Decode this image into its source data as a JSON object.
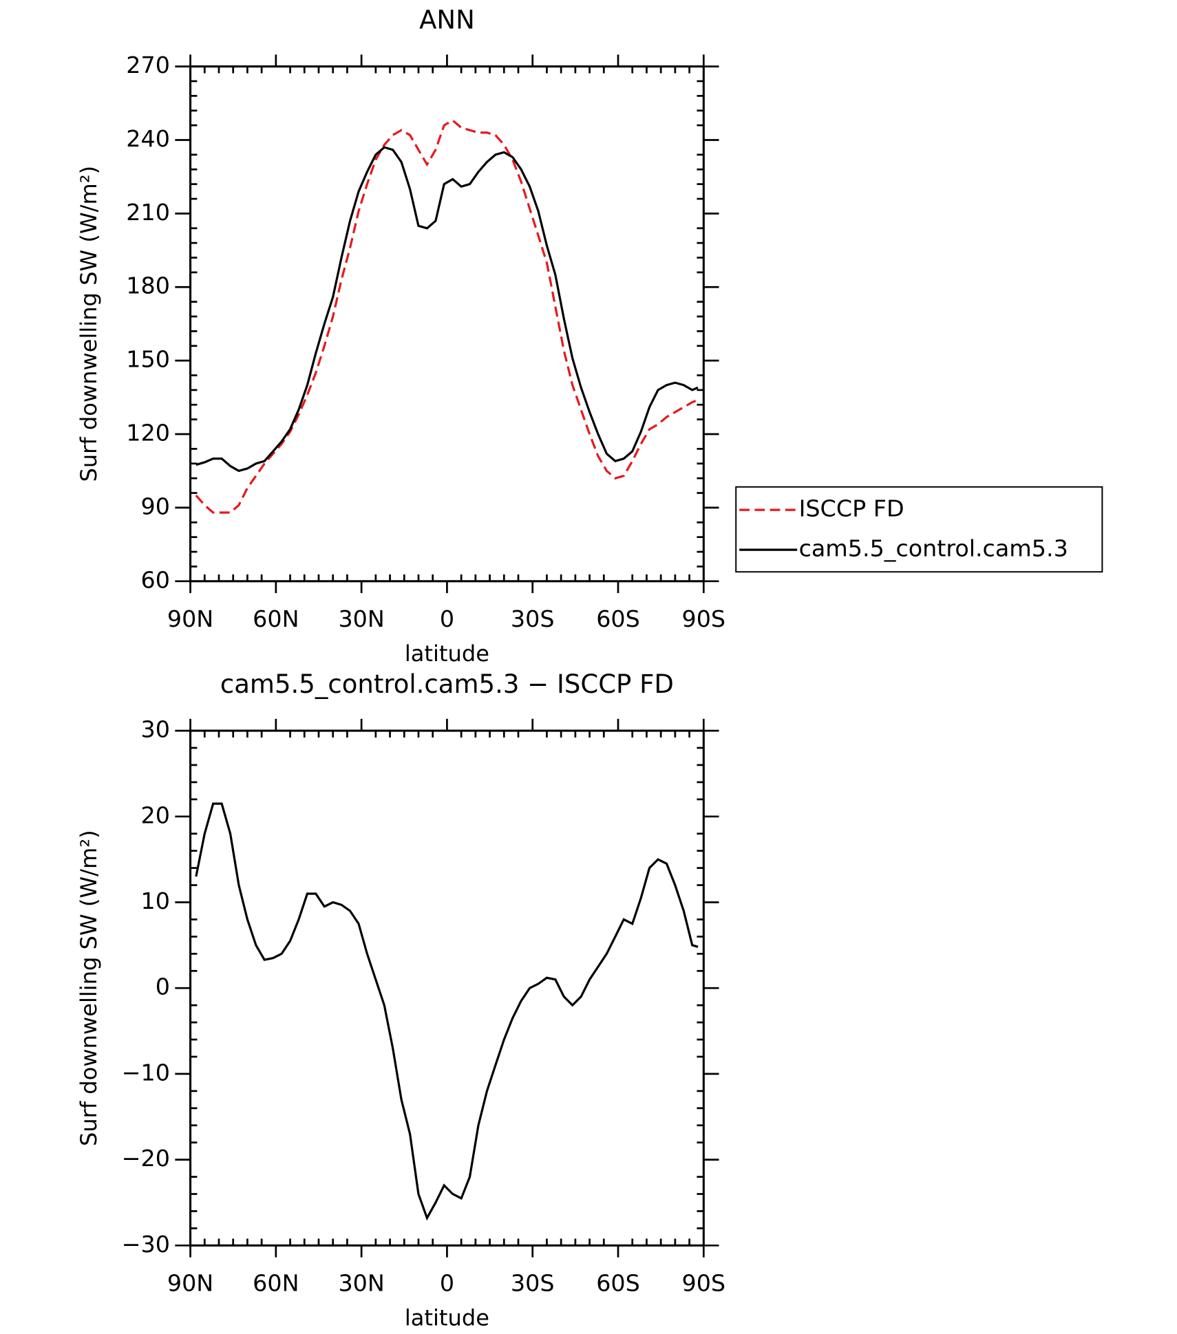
{
  "chart_data": [
    {
      "type": "line",
      "title": "ANN",
      "xlabel": "latitude",
      "ylabel": "Surf downwelling SW (W/m²)",
      "x": [
        88,
        85,
        82,
        79,
        76,
        73,
        70,
        67,
        64,
        61,
        58,
        55,
        52,
        49,
        46,
        43,
        40,
        37,
        34,
        31,
        28,
        25,
        22,
        19,
        16,
        13,
        10,
        7,
        4,
        1,
        -2,
        -5,
        -8,
        -11,
        -14,
        -17,
        -20,
        -23,
        -26,
        -29,
        -32,
        -35,
        -38,
        -41,
        -44,
        -47,
        -50,
        -53,
        -56,
        -59,
        -62,
        -65,
        -68,
        -71,
        -74,
        -77,
        -80,
        -83,
        -86,
        -88
      ],
      "series": [
        {
          "name": "ISCCP FD",
          "color": "#e8181d",
          "dash": true,
          "values": [
            95,
            91,
            88,
            88,
            88,
            91,
            98,
            103,
            108,
            112,
            116,
            121,
            128,
            136,
            145,
            156,
            168,
            183,
            196,
            211,
            222,
            232,
            238,
            242,
            244,
            242,
            236,
            230,
            236,
            246,
            248,
            245,
            244,
            243,
            243,
            242,
            238,
            232,
            223,
            212,
            201,
            190,
            172,
            154,
            140,
            130,
            120,
            111,
            105,
            102,
            103,
            109,
            116,
            122,
            124,
            127,
            129,
            131,
            133,
            134
          ]
        },
        {
          "name": "cam5.5_control.cam5.3",
          "color": "#000000",
          "dash": false,
          "values": [
            107.5,
            108.5,
            110,
            110,
            107,
            105,
            106,
            108,
            109,
            113,
            117,
            122,
            130,
            140,
            153,
            165,
            176,
            192,
            207,
            219,
            227,
            234,
            237,
            236,
            231,
            220,
            205,
            204,
            207,
            222,
            224,
            221,
            222,
            227,
            231,
            234,
            235,
            233,
            228,
            221,
            211,
            197,
            185,
            167,
            151,
            139,
            129,
            120,
            112,
            109,
            110,
            113,
            121,
            131,
            138,
            140,
            141,
            140,
            138,
            139
          ]
        }
      ],
      "xlim": [
        90,
        -90
      ],
      "xticks": [
        {
          "value": 90,
          "label": "90N"
        },
        {
          "value": 60,
          "label": "60N"
        },
        {
          "value": 30,
          "label": "30N"
        },
        0,
        {
          "value": -30,
          "label": "30S"
        },
        {
          "value": -60,
          "label": "60S"
        },
        {
          "value": -90,
          "label": "90S"
        }
      ],
      "ylim": [
        60,
        270
      ],
      "yticks": [
        60,
        90,
        120,
        150,
        180,
        210,
        240,
        270
      ],
      "legend": "right"
    },
    {
      "type": "line",
      "title": "cam5.5_control.cam5.3 − ISCCP FD",
      "xlabel": "latitude",
      "ylabel": "Surf downwelling SW (W/m²)",
      "x": [
        88,
        85,
        82,
        79,
        76,
        73,
        70,
        67,
        64,
        61,
        58,
        55,
        52,
        49,
        46,
        43,
        40,
        37,
        34,
        31,
        28,
        25,
        22,
        19,
        16,
        13,
        10,
        7,
        4,
        1,
        -2,
        -5,
        -8,
        -11,
        -14,
        -17,
        -20,
        -23,
        -26,
        -29,
        -32,
        -35,
        -38,
        -41,
        -44,
        -47,
        -50,
        -53,
        -56,
        -59,
        -62,
        -65,
        -68,
        -71,
        -74,
        -77,
        -80,
        -83,
        -86,
        -88
      ],
      "series": [
        {
          "color": "#000000",
          "dash": false,
          "values": [
            13,
            18,
            21.5,
            21.5,
            18,
            12,
            8,
            5,
            3.3,
            3.5,
            4,
            5.5,
            8,
            11,
            11,
            9.5,
            10,
            9.7,
            9,
            7.5,
            4,
            1,
            -2,
            -7,
            -13,
            -17,
            -24,
            -26.8,
            -25,
            -23,
            -24,
            -24.5,
            -22,
            -16,
            -12,
            -9,
            -6,
            -3.5,
            -1.5,
            0,
            0.5,
            1.2,
            1,
            -1,
            -2,
            -1,
            1,
            2.5,
            4,
            6,
            8,
            7.5,
            10.5,
            14,
            15,
            14.5,
            12,
            9,
            5,
            4.8
          ]
        }
      ],
      "xlim": [
        90,
        -90
      ],
      "xticks": [
        {
          "value": 90,
          "label": "90N"
        },
        {
          "value": 60,
          "label": "60N"
        },
        {
          "value": 30,
          "label": "30N"
        },
        0,
        {
          "value": -30,
          "label": "30S"
        },
        {
          "value": -60,
          "label": "60S"
        },
        {
          "value": -90,
          "label": "90S"
        }
      ],
      "ylim": [
        -30,
        30
      ],
      "yticks": [
        {
          "value": -30,
          "label": "−30"
        },
        {
          "value": -20,
          "label": "−20"
        },
        {
          "value": -10,
          "label": "−10"
        },
        0,
        10,
        20,
        30
      ]
    }
  ]
}
